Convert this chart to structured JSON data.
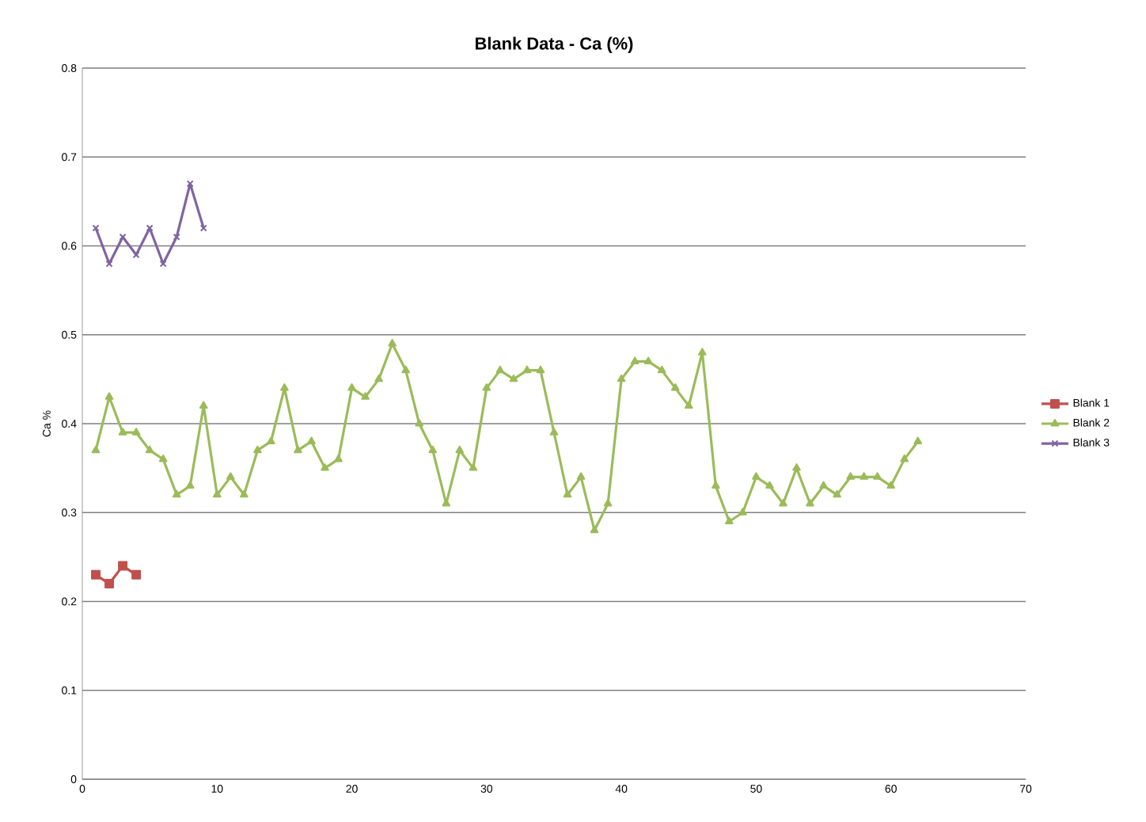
{
  "chart_data": {
    "type": "line",
    "title": "Blank Data - Ca (%)",
    "ylabel": "Ca %",
    "xlim": [
      0,
      70
    ],
    "xticks": [
      0,
      10,
      20,
      30,
      40,
      50,
      60,
      70
    ],
    "ylim": [
      0,
      0.8
    ],
    "yticks": [
      0,
      0.1,
      0.2,
      0.3,
      0.4,
      0.5,
      0.6,
      0.7,
      0.8
    ],
    "grid": "y",
    "legend": "right",
    "series": [
      {
        "name": "Blank 1",
        "color": "#c0504d",
        "marker": "square",
        "x": [
          1,
          2,
          3,
          4
        ],
        "values": [
          0.23,
          0.22,
          0.24,
          0.23
        ]
      },
      {
        "name": "Blank 2",
        "color": "#9bbb59",
        "marker": "triangle",
        "x": [
          1,
          2,
          3,
          4,
          5,
          6,
          7,
          8,
          9,
          10,
          11,
          12,
          13,
          14,
          15,
          16,
          17,
          18,
          19,
          20,
          21,
          22,
          23,
          24,
          25,
          26,
          27,
          28,
          29,
          30,
          31,
          32,
          33,
          34,
          35,
          36,
          37,
          38,
          39,
          40,
          41,
          42,
          43,
          44,
          45,
          46,
          47,
          48,
          49,
          50,
          51,
          52,
          53,
          54,
          55,
          56,
          57,
          58,
          59,
          60,
          61,
          62
        ],
        "values": [
          0.37,
          0.43,
          0.39,
          0.39,
          0.37,
          0.36,
          0.32,
          0.33,
          0.42,
          0.32,
          0.34,
          0.32,
          0.37,
          0.38,
          0.44,
          0.37,
          0.38,
          0.35,
          0.36,
          0.44,
          0.43,
          0.45,
          0.49,
          0.46,
          0.4,
          0.37,
          0.31,
          0.37,
          0.35,
          0.44,
          0.46,
          0.45,
          0.46,
          0.46,
          0.39,
          0.32,
          0.34,
          0.28,
          0.31,
          0.45,
          0.47,
          0.47,
          0.46,
          0.44,
          0.42,
          0.48,
          0.33,
          0.29,
          0.3,
          0.34,
          0.33,
          0.31,
          0.35,
          0.31,
          0.33,
          0.32,
          0.34,
          0.34,
          0.34,
          0.33,
          0.36,
          0.38
        ]
      },
      {
        "name": "Blank 3",
        "color": "#8064a2",
        "marker": "cross",
        "x": [
          1,
          2,
          3,
          4,
          5,
          6,
          7,
          8,
          9
        ],
        "values": [
          0.62,
          0.58,
          0.61,
          0.59,
          0.62,
          0.58,
          0.61,
          0.67,
          0.62
        ]
      }
    ]
  }
}
